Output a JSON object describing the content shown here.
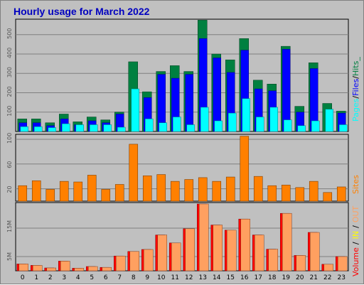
{
  "title": "Hourly usage for March 2022",
  "colors": {
    "title": "#0000c0",
    "background": "#c0c0c0",
    "hits": "#008040",
    "files": "#0000ff",
    "pages": "#00ffff",
    "sites": "#ff8000",
    "volume": "#ff0000",
    "in": "#ffff00",
    "out": "#ffa060"
  },
  "legend_top": {
    "pages": "Pages",
    "files": "Files",
    "hits": "Hits",
    "sep1": "/",
    "sep2": "/",
    "end": "_"
  },
  "legend_middle": {
    "sites": "Sites"
  },
  "legend_bottom": {
    "volume": "Volume",
    "in": "IN",
    "out": "OUT",
    "sep1": "/",
    "sep2": "/"
  },
  "chart_data": [
    {
      "type": "bar",
      "name": "hits-files-pages",
      "categories": [
        "0",
        "1",
        "2",
        "3",
        "4",
        "5",
        "6",
        "7",
        "8",
        "9",
        "10",
        "11",
        "12",
        "13",
        "14",
        "15",
        "16",
        "17",
        "18",
        "19",
        "20",
        "21",
        "22",
        "23"
      ],
      "ylim": [
        0,
        580
      ],
      "yticks": [
        "100",
        "200",
        "300",
        "400",
        "500"
      ],
      "grid": true,
      "legend_placement": "right-vertical",
      "series": [
        {
          "name": "Hits",
          "values": [
            65,
            65,
            45,
            90,
            50,
            75,
            60,
            100,
            360,
            205,
            310,
            340,
            310,
            575,
            400,
            370,
            480,
            265,
            245,
            440,
            130,
            355,
            145,
            105
          ]
        },
        {
          "name": "Files",
          "values": [
            45,
            45,
            30,
            65,
            35,
            55,
            45,
            90,
            0,
            175,
            295,
            275,
            295,
            480,
            380,
            305,
            420,
            220,
            210,
            425,
            100,
            325,
            0,
            95
          ]
        },
        {
          "name": "Pages",
          "values": [
            25,
            25,
            20,
            40,
            35,
            35,
            35,
            22,
            220,
            65,
            45,
            75,
            35,
            125,
            55,
            95,
            170,
            75,
            125,
            60,
            30,
            55,
            115,
            35
          ]
        }
      ]
    },
    {
      "type": "bar",
      "name": "sites",
      "categories": [
        "0",
        "1",
        "2",
        "3",
        "4",
        "5",
        "6",
        "7",
        "8",
        "9",
        "10",
        "11",
        "12",
        "13",
        "14",
        "15",
        "16",
        "17",
        "18",
        "19",
        "20",
        "21",
        "22",
        "23"
      ],
      "ylim": [
        0,
        108
      ],
      "yticks": [
        "20",
        "60",
        "100"
      ],
      "grid": true,
      "legend_placement": "right-vertical",
      "series": [
        {
          "name": "Sites",
          "values": [
            25,
            33,
            19,
            32,
            31,
            42,
            19,
            27,
            92,
            41,
            43,
            32,
            35,
            38,
            32,
            39,
            105,
            40,
            25,
            26,
            22,
            32,
            14,
            23
          ]
        }
      ]
    },
    {
      "type": "bar",
      "name": "volume-in-out",
      "categories": [
        "0",
        "1",
        "2",
        "3",
        "4",
        "5",
        "6",
        "7",
        "8",
        "9",
        "10",
        "11",
        "12",
        "13",
        "14",
        "15",
        "16",
        "17",
        "18",
        "19",
        "20",
        "21",
        "22",
        "23"
      ],
      "ylim": [
        0,
        24
      ],
      "yticks": [
        "5M",
        "15M"
      ],
      "grid": true,
      "legend_placement": "right-vertical",
      "series": [
        {
          "name": "Volume",
          "values": [
            2.4,
            1.9,
            1.0,
            3.4,
            0.9,
            1.5,
            1.2,
            5.2,
            6.8,
            7.5,
            12.6,
            9.8,
            14.8,
            23.5,
            16.1,
            14.3,
            18.2,
            12.6,
            7.6,
            20.2,
            5.4,
            13.5,
            2.3,
            5.0
          ]
        },
        {
          "name": "IN",
          "values": [
            0,
            0,
            0,
            0,
            0,
            0,
            0,
            0,
            0,
            0,
            0,
            0,
            0,
            0,
            0,
            0,
            0,
            0,
            0,
            0,
            0,
            0,
            0,
            0
          ]
        },
        {
          "name": "OUT",
          "values": [
            2.4,
            1.9,
            1.0,
            3.4,
            0.9,
            1.5,
            1.2,
            5.2,
            6.8,
            7.5,
            12.6,
            9.8,
            14.8,
            23.5,
            16.1,
            14.3,
            18.2,
            12.6,
            7.6,
            20.2,
            5.4,
            13.5,
            2.3,
            5.0
          ]
        }
      ]
    }
  ]
}
